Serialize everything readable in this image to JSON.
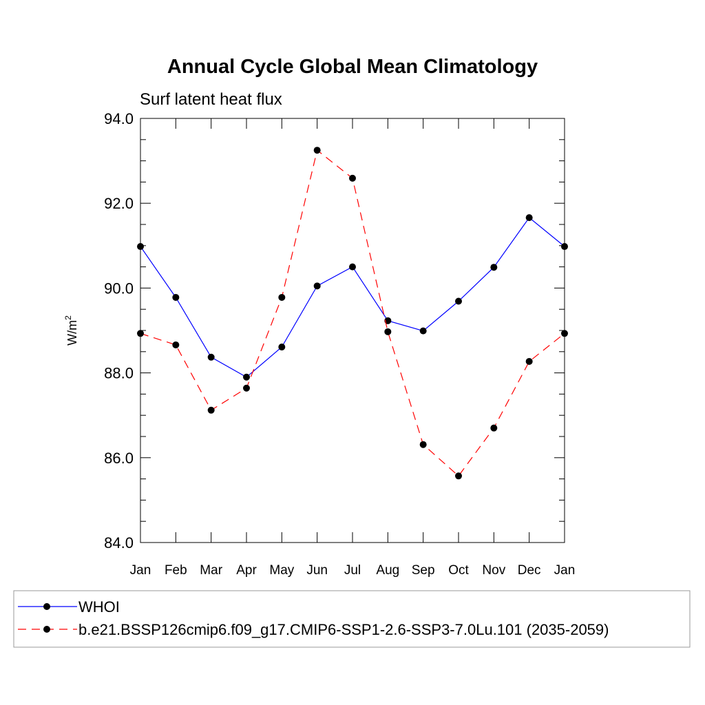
{
  "chart_data": {
    "type": "line",
    "title": "Annual Cycle Global Mean Climatology",
    "subtitle": "Surf latent heat flux",
    "ylabel_base": "W/m",
    "ylabel_sup": "2",
    "categories": [
      "Jan",
      "Feb",
      "Mar",
      "Apr",
      "May",
      "Jun",
      "Jul",
      "Aug",
      "Sep",
      "Oct",
      "Nov",
      "Dec",
      "Jan"
    ],
    "ylim": [
      84.0,
      94.0
    ],
    "yticks": [
      "84.0",
      "86.0",
      "88.0",
      "90.0",
      "92.0",
      "94.0"
    ],
    "legend_placement": "bottom",
    "series": [
      {
        "name": "WHOI",
        "color": "#0000ff",
        "dash": "solid",
        "values": [
          90.98,
          89.78,
          88.37,
          87.9,
          88.61,
          90.05,
          90.5,
          89.23,
          88.99,
          89.69,
          90.49,
          91.66,
          90.98
        ]
      },
      {
        "name": "b.e21.BSSP126cmip6.f09_g17.CMIP6-SSP1-2.6-SSP3-7.0Lu.101 (2035-2059)",
        "color": "#ff0000",
        "dash": "dashed",
        "values": [
          88.93,
          88.66,
          87.12,
          87.64,
          89.78,
          93.25,
          92.59,
          88.97,
          86.31,
          85.57,
          86.7,
          88.27,
          88.93
        ]
      }
    ]
  }
}
